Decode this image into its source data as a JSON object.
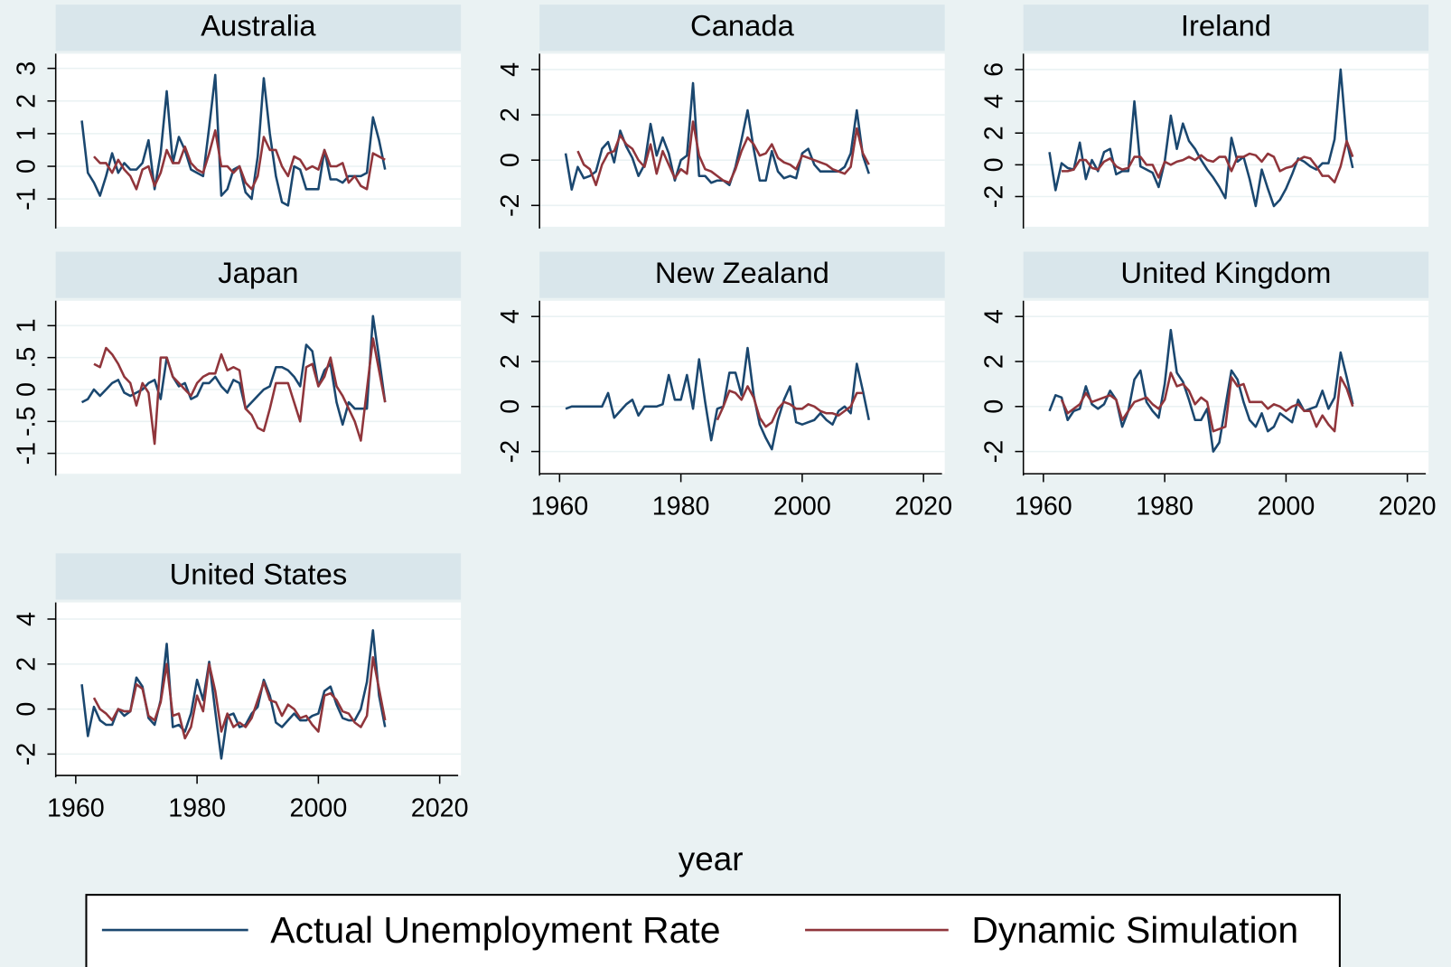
{
  "chart_data": {
    "type": "line",
    "xlabel": "year",
    "x": [
      1961,
      1962,
      1963,
      1964,
      1965,
      1966,
      1967,
      1968,
      1969,
      1970,
      1971,
      1972,
      1973,
      1974,
      1975,
      1976,
      1977,
      1978,
      1979,
      1980,
      1981,
      1982,
      1983,
      1984,
      1985,
      1986,
      1987,
      1988,
      1989,
      1990,
      1991,
      1992,
      1993,
      1994,
      1995,
      1996,
      1997,
      1998,
      1999,
      2000,
      2001,
      2002,
      2003,
      2004,
      2005,
      2006,
      2007,
      2008,
      2009,
      2010,
      2011
    ],
    "xlim": [
      1956.7,
      2023.5
    ],
    "xticks": [
      1960,
      1980,
      2000,
      2020
    ],
    "grid": true,
    "legend": [
      {
        "name": "Actual Unemployment Rate",
        "color": "#1a476f"
      },
      {
        "name": "Dynamic Simulation",
        "color": "#90353b"
      }
    ],
    "panels": [
      {
        "title": "Australia",
        "ylim": [
          -1.85,
          3.45
        ],
        "yticks": [
          -1,
          0,
          1,
          2,
          3
        ],
        "series": [
          {
            "values": [
              1.4,
              -0.2,
              -0.5,
              -0.9,
              -0.3,
              0.4,
              -0.2,
              0.1,
              -0.1,
              -0.1,
              0.1,
              0.8,
              -0.7,
              0.4,
              2.3,
              0.1,
              0.9,
              0.5,
              -0.1,
              -0.2,
              -0.3,
              1.2,
              2.8,
              -0.9,
              -0.7,
              -0.1,
              0.0,
              -0.8,
              -1.0,
              0.3,
              2.7,
              1.0,
              -0.3,
              -1.1,
              -1.2,
              0.0,
              -0.1,
              -0.7,
              -0.7,
              -0.7,
              0.5,
              -0.4,
              -0.4,
              -0.5,
              -0.3,
              -0.3,
              -0.3,
              -0.2,
              1.5,
              0.8,
              -0.1
            ]
          },
          {
            "values": [
              null,
              null,
              0.3,
              0.1,
              0.1,
              -0.2,
              0.2,
              -0.1,
              -0.3,
              -0.7,
              -0.1,
              0.0,
              -0.6,
              -0.2,
              0.5,
              0.1,
              0.1,
              0.6,
              0.1,
              -0.1,
              -0.2,
              0.4,
              1.1,
              0.0,
              0.0,
              -0.2,
              0.0,
              -0.5,
              -0.7,
              -0.3,
              0.9,
              0.5,
              0.5,
              0.0,
              -0.3,
              0.3,
              0.2,
              -0.1,
              0.0,
              -0.1,
              0.5,
              0.0,
              0.0,
              0.1,
              -0.5,
              -0.3,
              -0.6,
              -0.7,
              0.4,
              0.3,
              0.2
            ]
          }
        ]
      },
      {
        "title": "Canada",
        "ylim": [
          -2.94,
          4.7
        ],
        "yticks": [
          -2,
          0,
          2,
          4
        ],
        "series": [
          {
            "values": [
              0.3,
              -1.3,
              -0.3,
              -0.8,
              -0.7,
              -0.5,
              0.5,
              0.8,
              -0.1,
              1.3,
              0.6,
              0.1,
              -0.7,
              -0.2,
              1.6,
              0.2,
              1.0,
              0.3,
              -0.9,
              0.0,
              0.2,
              3.4,
              -0.7,
              -0.7,
              -1.0,
              -0.9,
              -0.9,
              -1.1,
              -0.3,
              0.9,
              2.2,
              0.5,
              -0.9,
              -0.9,
              0.4,
              -0.5,
              -0.8,
              -0.7,
              -0.8,
              0.3,
              0.5,
              -0.2,
              -0.5,
              -0.5,
              -0.5,
              -0.5,
              -0.3,
              0.3,
              2.2,
              0.2,
              -0.6
            ]
          },
          {
            "values": [
              null,
              null,
              0.4,
              -0.2,
              -0.4,
              -1.1,
              -0.2,
              0.3,
              0.4,
              1.1,
              0.7,
              0.5,
              0.0,
              -0.3,
              0.7,
              -0.6,
              0.4,
              -0.2,
              -0.8,
              -0.4,
              -0.6,
              1.7,
              0.2,
              -0.4,
              -0.5,
              -0.7,
              -0.9,
              -1.0,
              -0.4,
              0.4,
              1.0,
              0.7,
              0.2,
              0.3,
              0.7,
              0.1,
              -0.1,
              -0.2,
              -0.4,
              0.2,
              0.1,
              0.0,
              -0.1,
              -0.2,
              -0.4,
              -0.5,
              -0.6,
              -0.3,
              1.4,
              0.3,
              -0.2
            ]
          }
        ]
      },
      {
        "title": "Ireland",
        "ylim": [
          -3.9,
          7.0
        ],
        "yticks": [
          -2,
          0,
          2,
          4,
          6
        ],
        "series": [
          {
            "values": [
              0.8,
              -1.6,
              0.1,
              -0.2,
              -0.3,
              1.4,
              -0.9,
              0.3,
              -0.4,
              0.8,
              1.0,
              -0.6,
              -0.4,
              -0.4,
              4.0,
              -0.1,
              -0.3,
              -0.5,
              -1.4,
              0.2,
              3.1,
              1.0,
              2.6,
              1.5,
              1.0,
              0.3,
              -0.3,
              -0.8,
              -1.4,
              -2.1,
              1.7,
              0.2,
              0.5,
              -0.9,
              -2.6,
              -0.3,
              -1.5,
              -2.6,
              -2.2,
              -1.5,
              -0.6,
              0.4,
              0.2,
              -0.1,
              -0.3,
              0.1,
              0.1,
              1.6,
              6.0,
              1.5,
              -0.2
            ]
          },
          {
            "values": [
              null,
              null,
              -0.4,
              -0.4,
              -0.3,
              0.3,
              0.3,
              -0.2,
              -0.3,
              0.2,
              0.4,
              -0.1,
              -0.3,
              -0.2,
              0.5,
              0.5,
              0.0,
              0.0,
              -0.8,
              0.2,
              0.0,
              0.2,
              0.3,
              0.5,
              0.3,
              0.6,
              0.3,
              0.2,
              0.5,
              0.5,
              -0.4,
              0.5,
              0.5,
              0.7,
              0.6,
              0.2,
              0.7,
              0.5,
              -0.4,
              -0.2,
              -0.1,
              0.3,
              0.5,
              0.4,
              -0.1,
              -0.7,
              -0.7,
              -1.1,
              -0.1,
              1.5,
              0.5
            ]
          }
        ]
      },
      {
        "title": "Japan",
        "ylim": [
          -1.32,
          1.39
        ],
        "yticks": [
          -1,
          {
            "value": -0.5,
            "label": "-.5"
          },
          0,
          {
            "value": 0.5,
            "label": ".5"
          },
          1
        ],
        "series": [
          {
            "values": [
              -0.2,
              -0.15,
              0.0,
              -0.1,
              0.0,
              0.1,
              0.15,
              -0.05,
              -0.1,
              -0.05,
              0.0,
              0.1,
              0.15,
              -0.15,
              0.5,
              0.2,
              0.05,
              0.1,
              -0.15,
              -0.1,
              0.1,
              0.1,
              0.2,
              0.05,
              -0.05,
              0.15,
              0.1,
              -0.3,
              -0.2,
              -0.1,
              0.0,
              0.05,
              0.35,
              0.35,
              0.3,
              0.2,
              0.05,
              0.7,
              0.6,
              0.05,
              0.3,
              0.4,
              -0.2,
              -0.55,
              -0.2,
              -0.3,
              -0.3,
              -0.3,
              1.15,
              0.5,
              -0.2
            ]
          },
          {
            "values": [
              null,
              null,
              0.4,
              0.35,
              0.65,
              0.55,
              0.4,
              0.2,
              0.1,
              -0.25,
              0.1,
              -0.05,
              -0.85,
              0.5,
              0.5,
              0.2,
              0.1,
              0.0,
              -0.1,
              0.1,
              0.2,
              0.25,
              0.25,
              0.55,
              0.3,
              0.35,
              0.3,
              -0.3,
              -0.4,
              -0.6,
              -0.65,
              -0.3,
              0.1,
              0.1,
              0.1,
              -0.2,
              -0.5,
              0.35,
              0.4,
              0.05,
              0.2,
              0.5,
              0.05,
              -0.1,
              -0.3,
              -0.5,
              -0.8,
              0.0,
              0.8,
              0.3,
              -0.2
            ]
          }
        ]
      },
      {
        "title": "New Zealand",
        "ylim": [
          -2.99,
          4.7
        ],
        "yticks": [
          -2,
          0,
          2,
          4
        ],
        "series": [
          {
            "values": [
              -0.1,
              0.0,
              0.0,
              0.0,
              0.0,
              0.0,
              0.0,
              0.6,
              -0.5,
              -0.2,
              0.1,
              0.3,
              -0.4,
              0.0,
              0.0,
              0.0,
              0.1,
              1.4,
              0.3,
              0.3,
              1.4,
              -0.1,
              2.1,
              0.2,
              -1.5,
              -0.1,
              0.0,
              1.5,
              1.5,
              0.5,
              2.6,
              0.5,
              -0.8,
              -1.4,
              -1.9,
              -0.6,
              0.3,
              0.9,
              -0.7,
              -0.8,
              -0.7,
              -0.6,
              -0.3,
              -0.6,
              -0.8,
              -0.2,
              0.0,
              -0.3,
              1.9,
              0.7,
              -0.6
            ]
          },
          {
            "values": [
              null,
              null,
              null,
              null,
              null,
              null,
              null,
              null,
              null,
              null,
              null,
              null,
              null,
              null,
              null,
              null,
              null,
              null,
              null,
              null,
              null,
              null,
              null,
              null,
              null,
              -0.6,
              0.0,
              0.7,
              0.6,
              0.3,
              0.9,
              0.4,
              -0.5,
              -0.9,
              -0.7,
              -0.1,
              0.2,
              0.1,
              -0.1,
              -0.1,
              0.1,
              0.0,
              -0.2,
              -0.3,
              -0.3,
              -0.4,
              -0.2,
              0.0,
              0.6,
              0.6,
              null
            ]
          }
        ]
      },
      {
        "title": "United Kingdom",
        "ylim": [
          -2.99,
          4.7
        ],
        "yticks": [
          -2,
          0,
          2,
          4
        ],
        "series": [
          {
            "values": [
              -0.2,
              0.5,
              0.4,
              -0.6,
              -0.2,
              -0.1,
              0.9,
              0.1,
              -0.1,
              0.1,
              0.7,
              0.3,
              -0.9,
              -0.2,
              1.2,
              1.6,
              0.2,
              -0.2,
              -0.5,
              1.0,
              3.4,
              1.5,
              1.1,
              0.3,
              -0.6,
              -0.6,
              -0.1,
              -2.0,
              -1.6,
              0.0,
              1.6,
              1.2,
              0.2,
              -0.6,
              -0.9,
              -0.3,
              -1.1,
              -0.9,
              -0.3,
              -0.5,
              -0.7,
              0.3,
              -0.2,
              -0.1,
              0.0,
              0.7,
              -0.1,
              0.4,
              2.4,
              1.3,
              0.1
            ]
          },
          {
            "values": [
              null,
              null,
              0.3,
              -0.3,
              -0.1,
              0.1,
              0.6,
              0.2,
              0.3,
              0.4,
              0.5,
              0.3,
              -0.6,
              -0.2,
              0.2,
              0.3,
              0.4,
              0.1,
              -0.1,
              0.3,
              1.5,
              0.9,
              1.0,
              0.7,
              0.1,
              0.4,
              0.2,
              -1.1,
              -1.0,
              -0.9,
              1.3,
              0.9,
              1.0,
              0.2,
              0.2,
              0.2,
              -0.1,
              0.1,
              0.0,
              -0.2,
              0.0,
              0.1,
              -0.2,
              -0.2,
              -0.9,
              -0.4,
              -0.8,
              -1.1,
              1.3,
              0.8,
              0.0
            ]
          }
        ]
      },
      {
        "title": "United States",
        "ylim": [
          -2.95,
          4.74
        ],
        "yticks": [
          -2,
          0,
          2,
          4
        ],
        "series": [
          {
            "values": [
              1.1,
              -1.2,
              0.1,
              -0.5,
              -0.7,
              -0.7,
              0.0,
              -0.3,
              -0.1,
              1.4,
              1.0,
              -0.4,
              -0.7,
              0.4,
              2.9,
              -0.8,
              -0.7,
              -1.0,
              -0.2,
              1.3,
              0.4,
              2.1,
              -0.1,
              -2.2,
              -0.3,
              -0.2,
              -0.8,
              -0.7,
              -0.2,
              0.1,
              1.3,
              0.6,
              -0.6,
              -0.8,
              -0.5,
              -0.2,
              -0.5,
              -0.5,
              -0.3,
              -0.2,
              0.8,
              1.0,
              0.2,
              -0.4,
              -0.5,
              -0.5,
              0.0,
              1.2,
              3.5,
              0.6,
              -0.8
            ]
          },
          {
            "values": [
              null,
              null,
              0.5,
              0.0,
              -0.2,
              -0.5,
              0.0,
              -0.1,
              -0.1,
              1.1,
              0.9,
              -0.3,
              -0.5,
              0.3,
              2.0,
              -0.3,
              -0.2,
              -1.3,
              -0.8,
              0.6,
              -0.1,
              2.0,
              0.8,
              -1.0,
              -0.2,
              -0.8,
              -0.6,
              -0.8,
              -0.4,
              0.4,
              1.2,
              0.4,
              0.3,
              -0.3,
              0.2,
              0.0,
              -0.4,
              -0.3,
              -0.7,
              -1.0,
              0.6,
              0.7,
              0.4,
              -0.1,
              -0.2,
              -0.6,
              -0.8,
              -0.3,
              2.3,
              0.9,
              -0.5
            ]
          }
        ]
      }
    ]
  }
}
